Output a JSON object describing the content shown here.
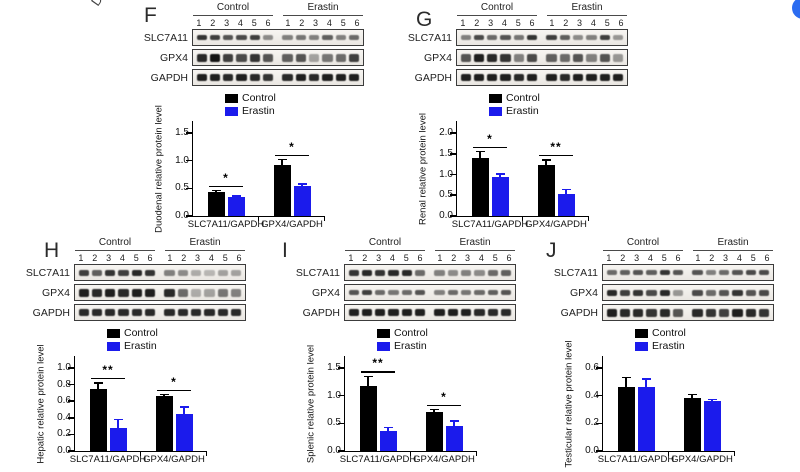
{
  "figure": {
    "corner_fragment_text": "D",
    "corner_dot_color": "#2b6cf1",
    "bar_colors": {
      "control": "#000000",
      "erastin": "#1b1bec"
    },
    "blot_common": {
      "group_labels": [
        "Control",
        "Erastin"
      ],
      "lane_numbers": [
        "1",
        "2",
        "3",
        "4",
        "5",
        "6",
        "1",
        "2",
        "3",
        "4",
        "5",
        "6"
      ],
      "row_labels": [
        "SLC7A11",
        "GPX4",
        "GAPDH"
      ]
    },
    "panels": [
      {
        "letter": "F",
        "blot_rows": [
          {
            "label": "SLC7A11",
            "band_height": 5,
            "bands": [
              0.85,
              0.8,
              0.7,
              0.75,
              0.8,
              0.45,
              0.5,
              0.55,
              0.5,
              0.65,
              0.5,
              0.6
            ]
          },
          {
            "label": "GPX4",
            "band_height": 8,
            "bands": [
              0.9,
              1,
              0.8,
              0.75,
              0.85,
              0.7,
              0.65,
              0.7,
              0.35,
              0.55,
              0.6,
              0.8
            ]
          },
          {
            "label": "GAPDH",
            "band_height": 7,
            "bands": [
              0.95,
              0.95,
              0.9,
              0.95,
              0.9,
              0.85,
              0.9,
              0.95,
              0.9,
              0.95,
              0.95,
              0.95
            ]
          }
        ]
      },
      {
        "letter": "G",
        "blot_rows": [
          {
            "label": "SLC7A11",
            "band_height": 5,
            "bands": [
              0.5,
              0.75,
              0.6,
              0.7,
              0.55,
              0.85,
              0.8,
              0.65,
              0.45,
              0.5,
              0.8,
              0.4
            ]
          },
          {
            "label": "GPX4",
            "band_height": 8,
            "bands": [
              0.7,
              0.95,
              0.9,
              0.85,
              0.5,
              0.75,
              0.65,
              0.6,
              0.7,
              0.5,
              0.7,
              0.4
            ]
          },
          {
            "label": "GAPDH",
            "band_height": 7,
            "bands": [
              0.95,
              0.95,
              0.95,
              0.95,
              0.9,
              0.95,
              0.95,
              0.9,
              0.95,
              0.95,
              0.95,
              0.95
            ]
          }
        ]
      },
      {
        "letter": "H",
        "blot_rows": [
          {
            "label": "SLC7A11",
            "band_height": 6,
            "bands": [
              0.8,
              0.65,
              0.85,
              0.8,
              0.9,
              0.85,
              0.5,
              0.45,
              0.3,
              0.25,
              0.35,
              0.35
            ]
          },
          {
            "label": "GPX4",
            "band_height": 8,
            "bands": [
              0.95,
              0.9,
              0.95,
              0.9,
              0.95,
              0.95,
              0.9,
              0.6,
              0.3,
              0.35,
              0.55,
              0.5
            ]
          },
          {
            "label": "GAPDH",
            "band_height": 7,
            "bands": [
              0.9,
              0.9,
              0.9,
              0.9,
              0.9,
              0.9,
              0.9,
              0.9,
              0.9,
              0.9,
              0.9,
              0.9
            ]
          }
        ]
      },
      {
        "letter": "I",
        "blot_rows": [
          {
            "label": "SLC7A11",
            "band_height": 6,
            "bands": [
              0.85,
              0.9,
              0.85,
              0.9,
              0.9,
              0.6,
              0.5,
              0.45,
              0.5,
              0.45,
              0.6,
              0.65
            ]
          },
          {
            "label": "GPX4",
            "band_height": 5,
            "bands": [
              0.7,
              0.8,
              0.6,
              0.55,
              0.6,
              0.7,
              0.5,
              0.6,
              0.55,
              0.6,
              0.65,
              0.7
            ]
          },
          {
            "label": "GAPDH",
            "band_height": 7,
            "bands": [
              0.95,
              0.95,
              0.95,
              0.95,
              0.95,
              0.95,
              0.95,
              0.95,
              0.95,
              0.9,
              0.9,
              0.9
            ]
          }
        ]
      },
      {
        "letter": "J",
        "blot_rows": [
          {
            "label": "SLC7A11",
            "band_height": 5,
            "bands": [
              0.6,
              0.65,
              0.7,
              0.65,
              0.85,
              0.7,
              0.7,
              0.5,
              0.6,
              0.7,
              0.75,
              0.75
            ]
          },
          {
            "label": "GPX4",
            "band_height": 6,
            "bands": [
              0.9,
              0.8,
              0.85,
              0.75,
              0.9,
              0.4,
              0.75,
              0.6,
              0.7,
              0.85,
              0.7,
              0.75
            ]
          },
          {
            "label": "GAPDH",
            "band_height": 8,
            "bands": [
              0.95,
              0.9,
              0.9,
              0.85,
              0.9,
              0.7,
              0.9,
              0.85,
              0.8,
              0.95,
              0.9,
              0.85
            ]
          }
        ]
      }
    ]
  },
  "chart_data": [
    {
      "type": "bar",
      "panel": "F",
      "ylabel": "Duodenal relative protein level",
      "ylim": [
        0,
        1.5
      ],
      "yticks": [
        0.0,
        0.5,
        1.0,
        1.5
      ],
      "grid": false,
      "legend_position": "top",
      "categories": [
        "SLC7A11/GAPDH",
        "GPX4/GAPDH"
      ],
      "series": [
        {
          "name": "Control",
          "color": "#000000",
          "values": [
            0.43,
            0.92
          ],
          "errors": [
            0.03,
            0.1
          ]
        },
        {
          "name": "Erastin",
          "color": "#1b1bec",
          "values": [
            0.34,
            0.54
          ],
          "errors": [
            0.02,
            0.04
          ]
        }
      ],
      "significance": [
        "*",
        "*"
      ]
    },
    {
      "type": "bar",
      "panel": "G",
      "ylabel": "Renal relative protein level",
      "ylim": [
        0,
        2.0
      ],
      "yticks": [
        0.0,
        0.5,
        1.0,
        1.5,
        2.0
      ],
      "grid": false,
      "legend_position": "top",
      "categories": [
        "SLC7A11/GAPDH",
        "GPX4/GAPDH"
      ],
      "series": [
        {
          "name": "Control",
          "color": "#000000",
          "values": [
            1.4,
            1.23
          ],
          "errors": [
            0.15,
            0.12
          ]
        },
        {
          "name": "Erastin",
          "color": "#1b1bec",
          "values": [
            0.93,
            0.52
          ],
          "errors": [
            0.08,
            0.12
          ]
        }
      ],
      "significance": [
        "*",
        "**"
      ]
    },
    {
      "type": "bar",
      "panel": "H",
      "ylabel": "Hepatic relative protein level",
      "ylim": [
        0,
        1.0
      ],
      "yticks": [
        0.0,
        0.2,
        0.4,
        0.6,
        0.8,
        1.0
      ],
      "grid": false,
      "legend_position": "top",
      "categories": [
        "SLC7A11/GAPDH",
        "GPX4/GAPDH"
      ],
      "series": [
        {
          "name": "Control",
          "color": "#000000",
          "values": [
            0.75,
            0.66
          ],
          "errors": [
            0.07,
            0.02
          ]
        },
        {
          "name": "Erastin",
          "color": "#1b1bec",
          "values": [
            0.28,
            0.44
          ],
          "errors": [
            0.1,
            0.09
          ]
        }
      ],
      "significance": [
        "**",
        "*"
      ]
    },
    {
      "type": "bar",
      "panel": "I",
      "ylabel": "Splenic relative protein level",
      "ylim": [
        0,
        1.5
      ],
      "yticks": [
        0.0,
        0.5,
        1.0,
        1.5
      ],
      "grid": false,
      "legend_position": "top",
      "categories": [
        "SLC7A11/GAPDH",
        "GPX4/GAPDH"
      ],
      "series": [
        {
          "name": "Control",
          "color": "#000000",
          "values": [
            1.18,
            0.7
          ],
          "errors": [
            0.17,
            0.05
          ]
        },
        {
          "name": "Erastin",
          "color": "#1b1bec",
          "values": [
            0.36,
            0.46
          ],
          "errors": [
            0.06,
            0.08
          ]
        }
      ],
      "significance": [
        "**",
        "*"
      ]
    },
    {
      "type": "bar",
      "panel": "J",
      "ylabel": "Testicular relative protein level",
      "ylim": [
        0,
        0.6
      ],
      "yticks": [
        0.0,
        0.2,
        0.4,
        0.6
      ],
      "grid": false,
      "legend_position": "top",
      "categories": [
        "SLC7A11/GAPDH",
        "GPX4/GAPDH"
      ],
      "series": [
        {
          "name": "Control",
          "color": "#000000",
          "values": [
            0.46,
            0.38
          ],
          "errors": [
            0.07,
            0.03
          ]
        },
        {
          "name": "Erastin",
          "color": "#1b1bec",
          "values": [
            0.46,
            0.36
          ],
          "errors": [
            0.06,
            0.01
          ]
        }
      ],
      "significance": [
        null,
        null
      ]
    }
  ]
}
